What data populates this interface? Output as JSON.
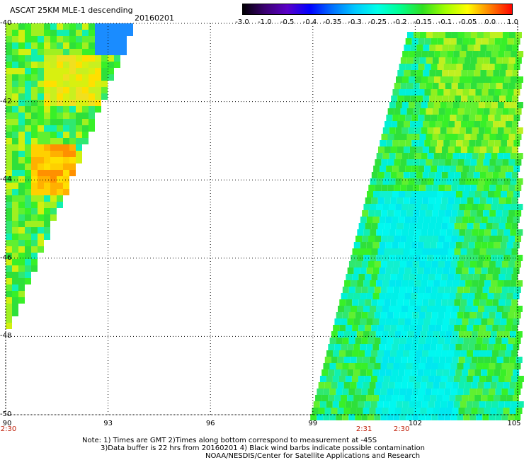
{
  "header": {
    "title": "ASCAT 25KM MLE-1 descending",
    "date": "20160201"
  },
  "colorbar": {
    "labels": [
      "-3.0",
      "-1.0",
      "-0.5",
      "-0.4",
      "-0.35",
      "-0.3",
      "-0.25",
      "-0.2",
      "-0.15",
      "-0.1",
      "-0.05",
      "0.0",
      "1.0"
    ],
    "colors": [
      "#000000",
      "#3a0070",
      "#5a00c8",
      "#0000ff",
      "#0070ff",
      "#00c8ff",
      "#00ffe8",
      "#00ff90",
      "#30e020",
      "#a0ff00",
      "#ffff00",
      "#ff8000",
      "#ff0000"
    ]
  },
  "map": {
    "lat_labels": [
      "-40",
      "-42",
      "-44",
      "-46",
      "-48",
      "-50"
    ],
    "lon_labels": [
      "90",
      "93",
      "96",
      "99",
      "102",
      "105"
    ],
    "pass_times": [
      {
        "label": "2:30",
        "at_lon": "90"
      },
      {
        "label": "2:31",
        "at_lon": "100.5"
      },
      {
        "label": "2:30",
        "at_lon": "101.6"
      }
    ]
  },
  "notes": {
    "line1": "Note: 1) Times are GMT 2)Times along bottom correspond to measurement at -45S",
    "line2": "3)Data buffer is 22 hrs from 20160201 4) Black wind barbs indicate possible contamination",
    "line3": "NOAA/NESDIS/Center for Satellite Applications and Research"
  }
}
